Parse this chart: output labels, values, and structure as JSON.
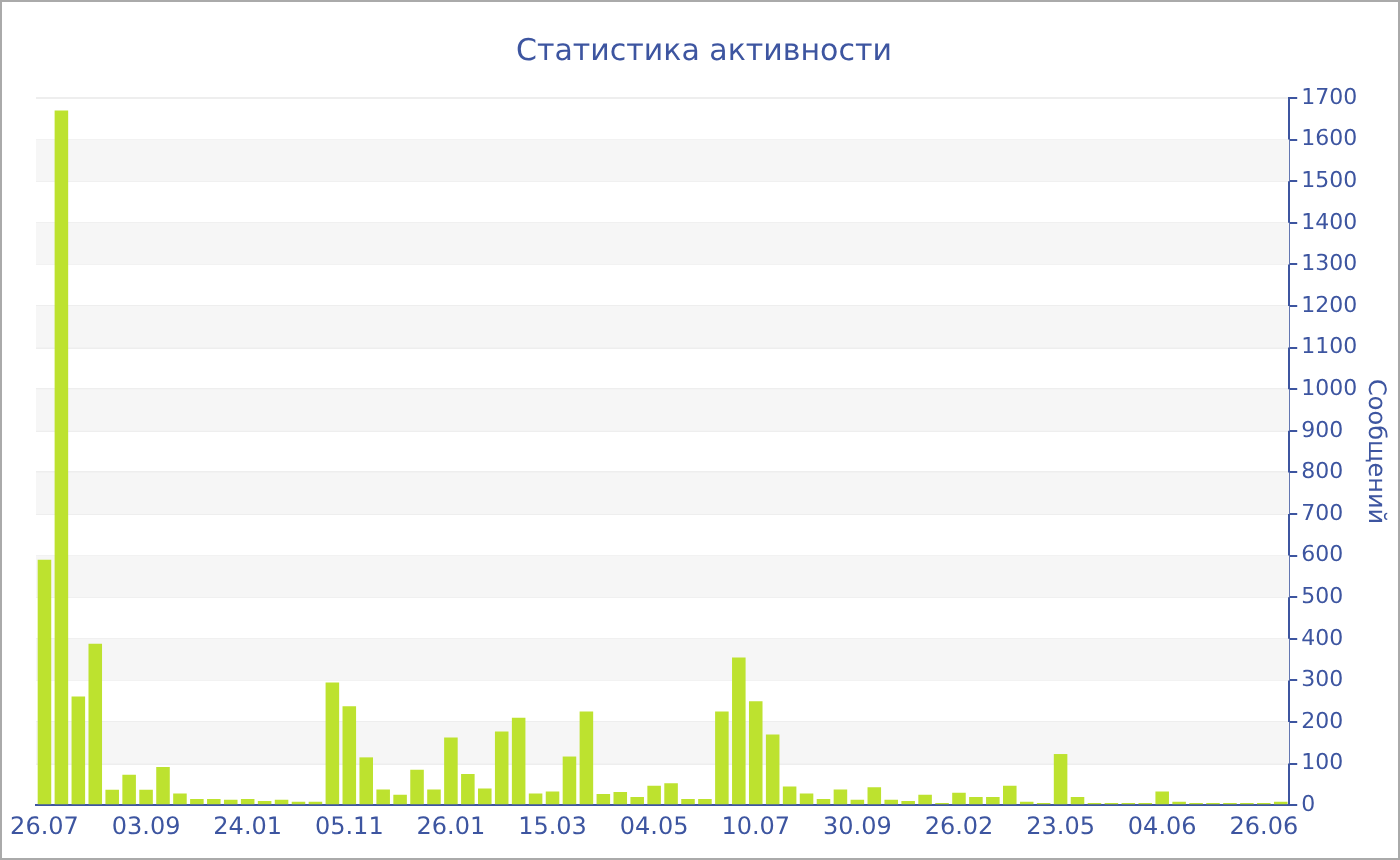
{
  "chart_data": {
    "type": "bar",
    "title": "Статистика активности",
    "ylabel": "Сообщений",
    "categories": [
      "26.07",
      null,
      null,
      null,
      null,
      null,
      "03.09",
      null,
      null,
      null,
      null,
      null,
      "24.01",
      null,
      null,
      null,
      null,
      null,
      "05.11",
      null,
      null,
      null,
      null,
      null,
      "26.01",
      null,
      null,
      null,
      null,
      null,
      "15.03",
      null,
      null,
      null,
      null,
      null,
      "04.05",
      null,
      null,
      null,
      null,
      null,
      "10.07",
      null,
      null,
      null,
      null,
      null,
      "30.09",
      null,
      null,
      null,
      null,
      null,
      "26.02",
      null,
      null,
      null,
      null,
      null,
      "23.05",
      null,
      null,
      null,
      null,
      null,
      "04.06",
      null,
      null,
      null,
      null,
      null,
      "26.06",
      null
    ],
    "values": [
      590,
      1670,
      261,
      388,
      37,
      73,
      37,
      92,
      28,
      15,
      15,
      13,
      15,
      10,
      13,
      8,
      8,
      295,
      238,
      115,
      38,
      25,
      85,
      38,
      163,
      75,
      40,
      177,
      210,
      28,
      33,
      117,
      225,
      27,
      32,
      20,
      47,
      53,
      15,
      15,
      225,
      355,
      250,
      170,
      45,
      28,
      15,
      38,
      13,
      43,
      13,
      10,
      25,
      5,
      30,
      20,
      20,
      47,
      8,
      5,
      123,
      20,
      5,
      5,
      5,
      5,
      33,
      8,
      5,
      5,
      5,
      5,
      5,
      8
    ],
    "color": "#bde22f",
    "ylim": [
      0,
      1700
    ],
    "yticks": [
      0,
      100,
      200,
      300,
      400,
      500,
      600,
      700,
      800,
      900,
      1000,
      1100,
      1200,
      1300,
      1400,
      1500,
      1600,
      1700
    ],
    "grid": "y"
  }
}
